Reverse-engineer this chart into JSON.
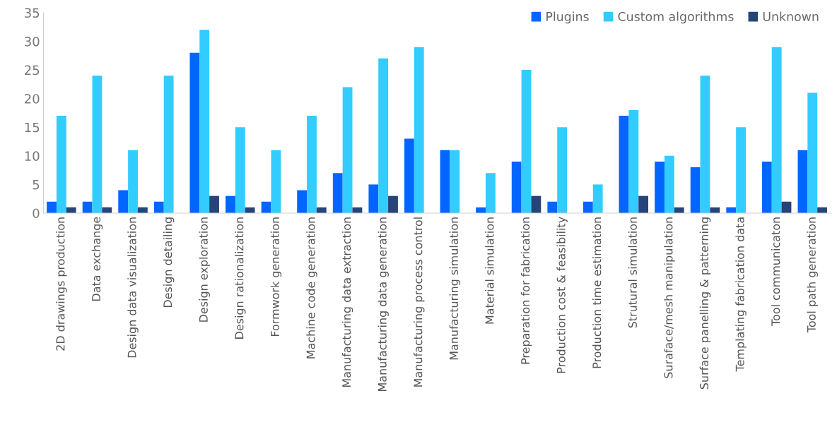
{
  "chart_data": {
    "type": "bar",
    "categories": [
      "2D drawings production",
      "Data exchange",
      "Design data visualization",
      "Design detailing",
      "Design exploration",
      "Design rationalization",
      "Formwork generation",
      "Machine code generation",
      "Manufacturing data extraction",
      "Manufacturing data generation",
      "Manufacturing process control",
      "Manufacturing simulation",
      "Material simulation",
      "Preparation for fabrication",
      "Production cost & feasibility",
      "Production time estimation",
      "Strutural simulation",
      "Suraface/mesh manipulation",
      "Surface panelling & patterning",
      "Templating fabrication data",
      "Tool communicaton",
      "Tool path generation"
    ],
    "series": [
      {
        "name": "Plugins",
        "color": "#0066ff",
        "values": [
          2,
          2,
          4,
          2,
          28,
          3,
          2,
          4,
          7,
          5,
          13,
          11,
          1,
          9,
          2,
          2,
          17,
          9,
          8,
          1,
          9,
          11
        ]
      },
      {
        "name": "Custom algorithms",
        "color": "#33ccff",
        "values": [
          17,
          24,
          11,
          24,
          32,
          15,
          11,
          17,
          22,
          27,
          29,
          11,
          7,
          25,
          15,
          5,
          18,
          10,
          24,
          15,
          29,
          21
        ]
      },
      {
        "name": "Unknown",
        "color": "#264478",
        "values": [
          1,
          1,
          1,
          0,
          3,
          1,
          0,
          1,
          1,
          3,
          0,
          0,
          0,
          3,
          0,
          0,
          3,
          1,
          1,
          0,
          2,
          1
        ]
      }
    ],
    "ylim": [
      0,
      35
    ],
    "yticks": [
      0,
      5,
      10,
      15,
      20,
      25,
      30,
      35
    ],
    "grid": false,
    "legend": "top right"
  }
}
